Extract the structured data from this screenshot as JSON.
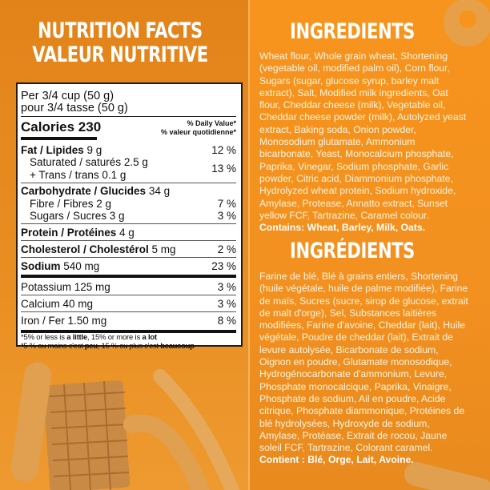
{
  "nutrition": {
    "title_lines": [
      "NUTRITION FACTS",
      "VALEUR NUTRITIVE"
    ],
    "serving_en": "Per 3/4 cup (50 g)",
    "serving_fr": "pour 3/4 tasse (50 g)",
    "calories_label": "Calories 230",
    "dv_en": "% Daily Value*",
    "dv_fr": "% valeur quotidienne*",
    "rows": [
      {
        "label": "Fat / Lipides",
        "amount": "9 g",
        "dv": "12 %"
      },
      {
        "label": "Saturated / saturés 2.5 g",
        "dv": "13 %"
      },
      {
        "label": "+ Trans / trans 0.1 g"
      },
      {
        "label": "Carbohydrate / Glucides",
        "amount": "34 g"
      },
      {
        "label": "Fibre / Fibres 2 g",
        "dv": "7 %"
      },
      {
        "label": "Sugars / Sucres 3 g",
        "dv": "3 %"
      },
      {
        "label": "Protein / Protéines",
        "amount": "4 g"
      },
      {
        "label": "Cholesterol / Cholestérol",
        "amount": "5 mg",
        "dv": "2 %"
      },
      {
        "label": "Sodium",
        "amount": "540 mg",
        "dv": "23 %"
      },
      {
        "label": "Potassium 125 mg",
        "dv": "3 %"
      },
      {
        "label": "Calcium 40 mg",
        "dv": "3 %"
      },
      {
        "label": "Iron / Fer 1.50 mg",
        "dv": "8 %"
      }
    ],
    "footnote_en": {
      "a": "*5% or less is ",
      "b": "a little",
      "c": ", 15% or more is ",
      "d": "a lot"
    },
    "footnote_fr": {
      "a": "*5 % ou moins c'est ",
      "b": "peu",
      "c": ", 15 % ou plus c'est ",
      "d": "beaucoup"
    }
  },
  "ingredients_en": {
    "title": "INGREDIENTS",
    "lines": [
      "Wheat flour, Whole grain wheat, Shortening",
      "(vegetable oil, modified palm oil), Corn flour,",
      "Sugars (sugar, glucose syrup, barley malt",
      "extract), Salt, Modified milk ingredients, Oat",
      "flour, Cheddar cheese (milk), Vegetable oil,",
      "Cheddar cheese powder (milk), Autolyzed yeast",
      "extract, Baking soda, Onion powder,",
      "Monosodium glutamate, Ammonium",
      "bicarbonate, Yeast, Monocalcium phosphate,",
      "Paprika, Vinegar, Sodium phosphate, Garlic",
      "powder, Citric acid, Diammonium phosphate,",
      "Hydrolyzed wheat protein, Sodium hydroxide,",
      "Amylase, Protease, Annatto extract, Sunset",
      "yellow FCF, Tartrazine, Caramel colour."
    ],
    "contains": "Contains: Wheat, Barley, Milk, Oats."
  },
  "ingredients_fr": {
    "title": "INGRÉDIENTS",
    "lines": [
      "Farine de blé, Blé à grains entiers, Shortening",
      "(huile végétale, huile de palme modifiée), Farine",
      "de maïs, Sucres (sucre, sirop de glucose, extrait",
      "de malt d'orge), Sel, Substances laitières",
      "modifiées, Farine d'avoine, Cheddar (lait), Huile",
      "végétale, Poudre de cheddar (lait), Extrait de",
      "levure autolysée, Bicarbonate de sodium,",
      "Oignon en poudre, Glutamate monosodique,",
      "Hydrogénocarbonate d'ammonium, Levure,",
      "Phosphate monocalcique, Paprika, Vinaigre,",
      "Phosphate de sodium, Ail en poudre, Acide",
      "citrique, Phosphate diammonique, Protéines de",
      "blé hydrolysées, Hydroxyde de sodium,",
      "Amylase, Protéase, Extrait de rocou, Jaune",
      "soleil FCF, Tartrazine, Colorant caramel."
    ],
    "contains": "Contient : Blé, Orge, Lait, Avoine."
  },
  "colors": {
    "left_bg": "#e2831a",
    "right_bg": "#f7941d",
    "text": "#ffffff",
    "snack": "#e0a050"
  }
}
